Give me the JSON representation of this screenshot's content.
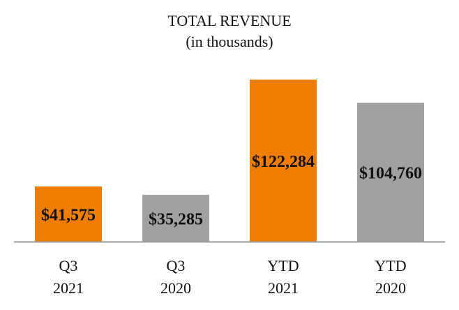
{
  "chart_data": {
    "type": "bar",
    "title": "TOTAL REVENUE",
    "subtitle": "(in thousands)",
    "categories": [
      [
        "Q3",
        "2021"
      ],
      [
        "Q3",
        "2020"
      ],
      [
        "YTD",
        "2021"
      ],
      [
        "YTD",
        "2020"
      ]
    ],
    "values": [
      41575,
      35285,
      122284,
      104760
    ],
    "data_labels": [
      "$41,575",
      "$35,285",
      "$122,284",
      "$104,760"
    ],
    "colors": [
      "#EE7D00",
      "#A0A2A2",
      "#EE7D00",
      "#A0A2A2"
    ],
    "axis_color": "#9a9a9a",
    "grid": false,
    "legend": "none"
  }
}
